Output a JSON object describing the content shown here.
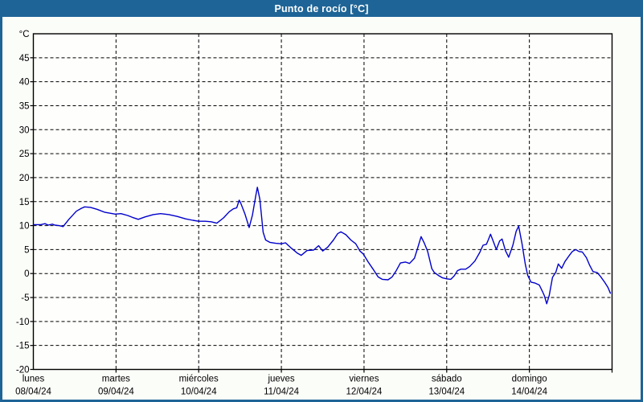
{
  "window": {
    "title": "Punto de rocío [°C]"
  },
  "colors": {
    "frame": "#1e6496",
    "titlebar_bg": "#1e6496",
    "title_text": "#ffffff",
    "page_bg": "#fbfdf9",
    "plot_bg": "#fefefc",
    "grid": "#000000",
    "axis": "#000000",
    "tick_text": "#000000",
    "line": "#0000cc"
  },
  "chart_data": {
    "type": "line",
    "title": "Punto de rocío [°C]",
    "ylabel": "°C",
    "xlabel": "",
    "grid": "dashed",
    "legend": "none",
    "y_axis": {
      "min": -20,
      "max": 50,
      "step": 5,
      "unit_label": "°C",
      "tick_labels": [
        "45",
        "40",
        "35",
        "30",
        "25",
        "20",
        "15",
        "10",
        "5",
        "0",
        "-5",
        "-10",
        "-15",
        "-20"
      ]
    },
    "x_axis": {
      "days": [
        {
          "name": "lunes",
          "date": "08/04/24"
        },
        {
          "name": "martes",
          "date": "09/04/24"
        },
        {
          "name": "miércoles",
          "date": "10/04/24"
        },
        {
          "name": "jueves",
          "date": "11/04/24"
        },
        {
          "name": "viernes",
          "date": "12/04/24"
        },
        {
          "name": "sábado",
          "date": "13/04/24"
        },
        {
          "name": "domingo",
          "date": "14/04/24"
        }
      ],
      "span_days": 7
    },
    "series": [
      {
        "name": "punto de rocío",
        "color": "#0000cc",
        "points": [
          [
            0.0,
            10.2
          ],
          [
            0.09,
            10.2
          ],
          [
            0.14,
            10.4
          ],
          [
            0.18,
            10.1
          ],
          [
            0.23,
            10.3
          ],
          [
            0.26,
            10.1
          ],
          [
            0.31,
            10.0
          ],
          [
            0.36,
            9.8
          ],
          [
            0.43,
            11.3
          ],
          [
            0.52,
            13.0
          ],
          [
            0.58,
            13.6
          ],
          [
            0.62,
            13.9
          ],
          [
            0.69,
            13.8
          ],
          [
            0.77,
            13.4
          ],
          [
            0.86,
            12.8
          ],
          [
            0.99,
            12.4
          ],
          [
            1.06,
            12.5
          ],
          [
            1.14,
            12.1
          ],
          [
            1.2,
            11.7
          ],
          [
            1.27,
            11.3
          ],
          [
            1.35,
            11.8
          ],
          [
            1.45,
            12.3
          ],
          [
            1.54,
            12.5
          ],
          [
            1.64,
            12.3
          ],
          [
            1.74,
            11.9
          ],
          [
            1.84,
            11.4
          ],
          [
            1.93,
            11.1
          ],
          [
            2.0,
            10.9
          ],
          [
            2.08,
            10.9
          ],
          [
            2.15,
            10.8
          ],
          [
            2.22,
            10.5
          ],
          [
            2.3,
            11.6
          ],
          [
            2.37,
            12.9
          ],
          [
            2.42,
            13.5
          ],
          [
            2.46,
            13.7
          ],
          [
            2.49,
            15.3
          ],
          [
            2.51,
            14.6
          ],
          [
            2.56,
            12.4
          ],
          [
            2.61,
            9.6
          ],
          [
            2.65,
            12.2
          ],
          [
            2.69,
            16.2
          ],
          [
            2.71,
            18.0
          ],
          [
            2.74,
            15.5
          ],
          [
            2.78,
            8.6
          ],
          [
            2.81,
            7.0
          ],
          [
            2.86,
            6.5
          ],
          [
            2.93,
            6.3
          ],
          [
            3.0,
            6.2
          ],
          [
            3.05,
            6.4
          ],
          [
            3.12,
            5.3
          ],
          [
            3.19,
            4.3
          ],
          [
            3.24,
            3.8
          ],
          [
            3.31,
            4.8
          ],
          [
            3.39,
            4.9
          ],
          [
            3.45,
            5.8
          ],
          [
            3.5,
            4.7
          ],
          [
            3.56,
            5.5
          ],
          [
            3.63,
            7.0
          ],
          [
            3.68,
            8.3
          ],
          [
            3.72,
            8.7
          ],
          [
            3.78,
            8.1
          ],
          [
            3.84,
            7.0
          ],
          [
            3.9,
            6.2
          ],
          [
            3.95,
            4.7
          ],
          [
            3.99,
            4.1
          ],
          [
            4.05,
            2.4
          ],
          [
            4.11,
            0.9
          ],
          [
            4.17,
            -0.7
          ],
          [
            4.22,
            -1.2
          ],
          [
            4.29,
            -1.3
          ],
          [
            4.34,
            -0.7
          ],
          [
            4.39,
            0.6
          ],
          [
            4.44,
            2.2
          ],
          [
            4.5,
            2.4
          ],
          [
            4.55,
            2.1
          ],
          [
            4.61,
            3.2
          ],
          [
            4.65,
            5.4
          ],
          [
            4.69,
            7.7
          ],
          [
            4.73,
            6.3
          ],
          [
            4.77,
            4.6
          ],
          [
            4.82,
            1.0
          ],
          [
            4.85,
            0.2
          ],
          [
            4.9,
            -0.4
          ],
          [
            4.95,
            -0.9
          ],
          [
            5.0,
            -1.1
          ],
          [
            5.05,
            -1.2
          ],
          [
            5.09,
            -0.5
          ],
          [
            5.13,
            0.6
          ],
          [
            5.17,
            0.9
          ],
          [
            5.23,
            0.9
          ],
          [
            5.28,
            1.5
          ],
          [
            5.34,
            2.6
          ],
          [
            5.4,
            4.4
          ],
          [
            5.44,
            5.9
          ],
          [
            5.48,
            6.1
          ],
          [
            5.5,
            6.9
          ],
          [
            5.53,
            8.2
          ],
          [
            5.57,
            6.4
          ],
          [
            5.6,
            5.0
          ],
          [
            5.64,
            6.8
          ],
          [
            5.67,
            7.2
          ],
          [
            5.71,
            4.8
          ],
          [
            5.75,
            3.4
          ],
          [
            5.8,
            5.9
          ],
          [
            5.84,
            8.8
          ],
          [
            5.87,
            9.9
          ],
          [
            5.91,
            6.3
          ],
          [
            5.95,
            2.0
          ],
          [
            5.98,
            -0.4
          ],
          [
            6.02,
            -1.8
          ],
          [
            6.07,
            -2.0
          ],
          [
            6.12,
            -2.4
          ],
          [
            6.16,
            -3.8
          ],
          [
            6.18,
            -4.6
          ],
          [
            6.21,
            -6.3
          ],
          [
            6.24,
            -4.6
          ],
          [
            6.28,
            -0.8
          ],
          [
            6.32,
            0.3
          ],
          [
            6.35,
            2.0
          ],
          [
            6.39,
            1.1
          ],
          [
            6.43,
            2.5
          ],
          [
            6.48,
            3.7
          ],
          [
            6.52,
            4.6
          ],
          [
            6.56,
            5.0
          ],
          [
            6.6,
            4.6
          ],
          [
            6.64,
            4.5
          ],
          [
            6.69,
            3.3
          ],
          [
            6.73,
            1.7
          ],
          [
            6.77,
            0.4
          ],
          [
            6.82,
            0.2
          ],
          [
            6.86,
            -0.6
          ],
          [
            6.91,
            -1.8
          ],
          [
            6.95,
            -2.9
          ],
          [
            6.98,
            -4.1
          ]
        ]
      }
    ]
  }
}
